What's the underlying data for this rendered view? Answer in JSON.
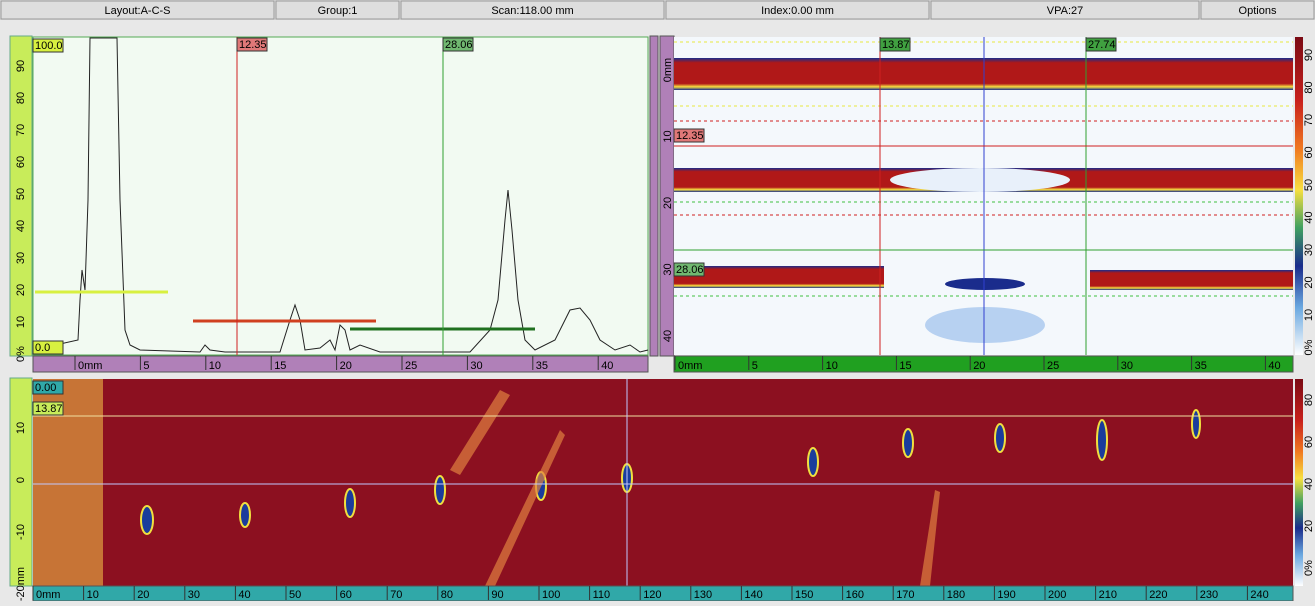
{
  "toolbar": [
    "Layout:A-C-S",
    "Group:1",
    "Scan:118.00 mm",
    "Index:0.00 mm",
    "VPA:27",
    "Options"
  ],
  "ascan": {
    "amp_labels": [
      "90",
      "80",
      "70",
      "60",
      "50",
      "40",
      "30",
      "20",
      "10",
      "0%"
    ],
    "gate_top": "100.0",
    "gate_bottom": "0.0",
    "cursor_a": "12.35",
    "cursor_b": "28.06",
    "x_labels": [
      "0mm",
      "5",
      "10",
      "15",
      "20",
      "25",
      "30",
      "35",
      "40"
    ]
  },
  "sscan": {
    "cursor_x1": "13.87",
    "cursor_x2": "27.74",
    "cursor_y1": "12.35",
    "cursor_y2": "28.06",
    "y_labels": [
      "0mm",
      "10",
      "20",
      "30",
      "40"
    ],
    "x_labels": [
      "0mm",
      "5",
      "10",
      "15",
      "20",
      "25",
      "30",
      "35",
      "40"
    ],
    "colorbar": [
      "90",
      "80",
      "70",
      "60",
      "50",
      "40",
      "30",
      "20",
      "10",
      "0%"
    ]
  },
  "cscan": {
    "index_label": "0.00",
    "scan_label": "13.87",
    "y_labels": [
      "10",
      "0",
      "-10",
      "-20mm"
    ],
    "x_labels": [
      "0mm",
      "10",
      "20",
      "30",
      "40",
      "50",
      "60",
      "70",
      "80",
      "90",
      "100",
      "110",
      "120",
      "130",
      "140",
      "150",
      "160",
      "170",
      "180",
      "190",
      "200",
      "210",
      "220",
      "230",
      "240"
    ],
    "colorbar": [
      "80",
      "60",
      "40",
      "20",
      "0%"
    ]
  }
}
